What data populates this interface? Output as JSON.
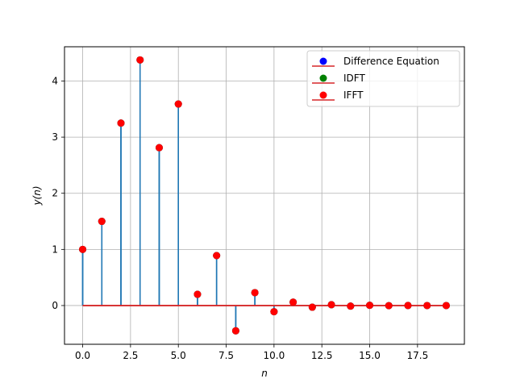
{
  "chart_data": {
    "type": "stem",
    "xlabel": "n",
    "ylabel": "y(n)",
    "xlim": [
      -0.95,
      19.95
    ],
    "ylim": [
      -0.69,
      4.61
    ],
    "x_ticks": [
      0.0,
      2.5,
      5.0,
      7.5,
      10.0,
      12.5,
      15.0,
      17.5
    ],
    "x_tick_labels": [
      "0.0",
      "2.5",
      "5.0",
      "7.5",
      "10.0",
      "12.5",
      "15.0",
      "17.5"
    ],
    "y_ticks": [
      0,
      1,
      2,
      3,
      4
    ],
    "y_tick_labels": [
      "0",
      "1",
      "2",
      "3",
      "4"
    ],
    "grid": true,
    "legend_position": "top-right",
    "stem_color": "#1f77b4",
    "baseline_color": "#d62728",
    "x": [
      0,
      1,
      2,
      3,
      4,
      5,
      6,
      7,
      8,
      9,
      10,
      11,
      12,
      13,
      14,
      15,
      16,
      17,
      18,
      19
    ],
    "series": [
      {
        "name": "Difference Equation",
        "marker_color": "#0000ff",
        "values": [
          1.0,
          1.5,
          3.25,
          4.375,
          2.8125,
          3.59,
          0.2,
          0.89,
          -0.45,
          0.23,
          -0.11,
          0.06,
          -0.03,
          0.015,
          -0.01,
          0.004,
          -0.002,
          0.001,
          0.0,
          0.0
        ]
      },
      {
        "name": "IDFT",
        "marker_color": "#008000",
        "values": [
          1.0,
          1.5,
          3.25,
          4.375,
          2.8125,
          3.59,
          0.2,
          0.89,
          -0.45,
          0.23,
          -0.11,
          0.06,
          -0.03,
          0.015,
          -0.01,
          0.004,
          -0.002,
          0.001,
          0.0,
          0.0
        ]
      },
      {
        "name": "IFFT",
        "marker_color": "#ff0000",
        "values": [
          1.0,
          1.5,
          3.25,
          4.375,
          2.8125,
          3.59,
          0.2,
          0.89,
          -0.45,
          0.23,
          -0.11,
          0.06,
          -0.03,
          0.015,
          -0.01,
          0.004,
          -0.002,
          0.001,
          0.0,
          0.0
        ]
      }
    ]
  }
}
